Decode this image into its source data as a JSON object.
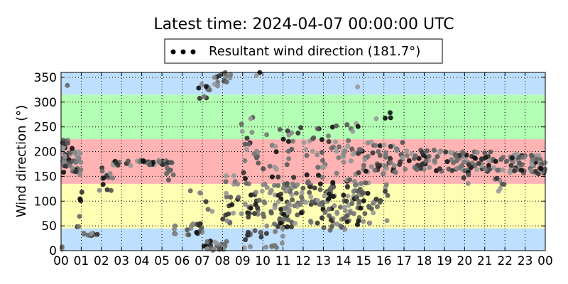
{
  "chart_data": {
    "type": "scatter",
    "title": "Latest time: 2024-04-07 00:00:00 UTC",
    "ylabel": "Wind direction (°)",
    "xlabel": "",
    "legend": {
      "label": "Resultant wind direction (181.7°)",
      "placement": "top-center"
    },
    "grid": true,
    "xlim": [
      0,
      24
    ],
    "ylim": [
      0,
      360
    ],
    "x_ticks": [
      "00",
      "01",
      "02",
      "03",
      "04",
      "05",
      "06",
      "07",
      "08",
      "09",
      "10",
      "11",
      "12",
      "13",
      "14",
      "15",
      "16",
      "17",
      "18",
      "19",
      "20",
      "21",
      "22",
      "23",
      "00"
    ],
    "y_ticks": [
      0,
      50,
      100,
      150,
      200,
      250,
      300,
      350
    ],
    "bands": [
      {
        "from": 0,
        "to": 45,
        "color": "#bfdfff"
      },
      {
        "from": 45,
        "to": 135,
        "color": "#ffffb3"
      },
      {
        "from": 135,
        "to": 225,
        "color": "#ffb3b3"
      },
      {
        "from": 225,
        "to": 315,
        "color": "#b3ffb3"
      },
      {
        "from": 315,
        "to": 360,
        "color": "#bfdfff"
      }
    ],
    "marker_colors": [
      "#999999",
      "#888888",
      "#777777",
      "#666666",
      "#555555",
      "#333333",
      "#111111"
    ],
    "segments": [
      {
        "x0": 0.0,
        "x1": 0.3,
        "y0": 155,
        "y1": 210,
        "n": 14
      },
      {
        "x0": 0.3,
        "x1": 1.0,
        "y0": 150,
        "y1": 200,
        "n": 30
      },
      {
        "x0": 0.0,
        "x1": 0.6,
        "y0": 200,
        "y1": 240,
        "n": 8
      },
      {
        "x0": 0.8,
        "x1": 1.1,
        "y0": 30,
        "y1": 120,
        "n": 6
      },
      {
        "x0": 1.0,
        "x1": 1.8,
        "y0": 30,
        "y1": 36,
        "n": 12
      },
      {
        "x0": 1.9,
        "x1": 2.6,
        "y0": 120,
        "y1": 180,
        "n": 12
      },
      {
        "x0": 2.5,
        "x1": 5.5,
        "y0": 172,
        "y1": 182,
        "n": 40
      },
      {
        "x0": 5.2,
        "x1": 5.6,
        "y0": 140,
        "y1": 170,
        "n": 6
      },
      {
        "x0": 5.6,
        "x1": 7.0,
        "y0": 30,
        "y1": 55,
        "n": 20
      },
      {
        "x0": 6.4,
        "x1": 7.5,
        "y0": 65,
        "y1": 125,
        "n": 6
      },
      {
        "x0": 7.0,
        "x1": 8.3,
        "y0": 0,
        "y1": 20,
        "n": 25
      },
      {
        "x0": 6.8,
        "x1": 7.6,
        "y0": 300,
        "y1": 345,
        "n": 10
      },
      {
        "x0": 7.6,
        "x1": 8.4,
        "y0": 330,
        "y1": 360,
        "n": 14
      },
      {
        "x0": 8.0,
        "x1": 9.5,
        "y0": 30,
        "y1": 160,
        "n": 35
      },
      {
        "x0": 8.8,
        "x1": 9.8,
        "y0": 150,
        "y1": 270,
        "n": 18
      },
      {
        "x0": 9.0,
        "x1": 11.0,
        "y0": 0,
        "y1": 40,
        "n": 18
      },
      {
        "x0": 9.5,
        "x1": 11.5,
        "y0": 40,
        "y1": 140,
        "n": 55
      },
      {
        "x0": 10.0,
        "x1": 12.0,
        "y0": 140,
        "y1": 250,
        "n": 25
      },
      {
        "x0": 11.0,
        "x1": 13.5,
        "y0": 55,
        "y1": 140,
        "n": 80
      },
      {
        "x0": 12.0,
        "x1": 13.5,
        "y0": 140,
        "y1": 260,
        "n": 25
      },
      {
        "x0": 13.0,
        "x1": 14.8,
        "y0": 40,
        "y1": 145,
        "n": 55
      },
      {
        "x0": 13.5,
        "x1": 14.8,
        "y0": 140,
        "y1": 260,
        "n": 30
      },
      {
        "x0": 14.5,
        "x1": 16.2,
        "y0": 50,
        "y1": 140,
        "n": 45
      },
      {
        "x0": 14.8,
        "x1": 16.2,
        "y0": 140,
        "y1": 220,
        "n": 30
      },
      {
        "x0": 15.6,
        "x1": 16.4,
        "y0": 220,
        "y1": 280,
        "n": 4
      },
      {
        "x0": 16.0,
        "x1": 17.0,
        "y0": 150,
        "y1": 220,
        "n": 25
      },
      {
        "x0": 17.0,
        "x1": 19.5,
        "y0": 160,
        "y1": 205,
        "n": 50
      },
      {
        "x0": 19.5,
        "x1": 21.5,
        "y0": 160,
        "y1": 200,
        "n": 55
      },
      {
        "x0": 19.9,
        "x1": 20.2,
        "y0": 130,
        "y1": 160,
        "n": 4
      },
      {
        "x0": 21.5,
        "x1": 22.2,
        "y0": 120,
        "y1": 190,
        "n": 14
      },
      {
        "x0": 22.2,
        "x1": 24.0,
        "y0": 155,
        "y1": 195,
        "n": 70
      },
      {
        "x0": 0.0,
        "x1": 0.1,
        "y0": 0,
        "y1": 8,
        "n": 2
      },
      {
        "x0": 0.2,
        "x1": 0.4,
        "y0": 320,
        "y1": 335,
        "n": 1
      },
      {
        "x0": 14.6,
        "x1": 14.8,
        "y0": 322,
        "y1": 332,
        "n": 1
      },
      {
        "x0": 9.6,
        "x1": 10.0,
        "y0": 352,
        "y1": 360,
        "n": 2
      }
    ]
  }
}
